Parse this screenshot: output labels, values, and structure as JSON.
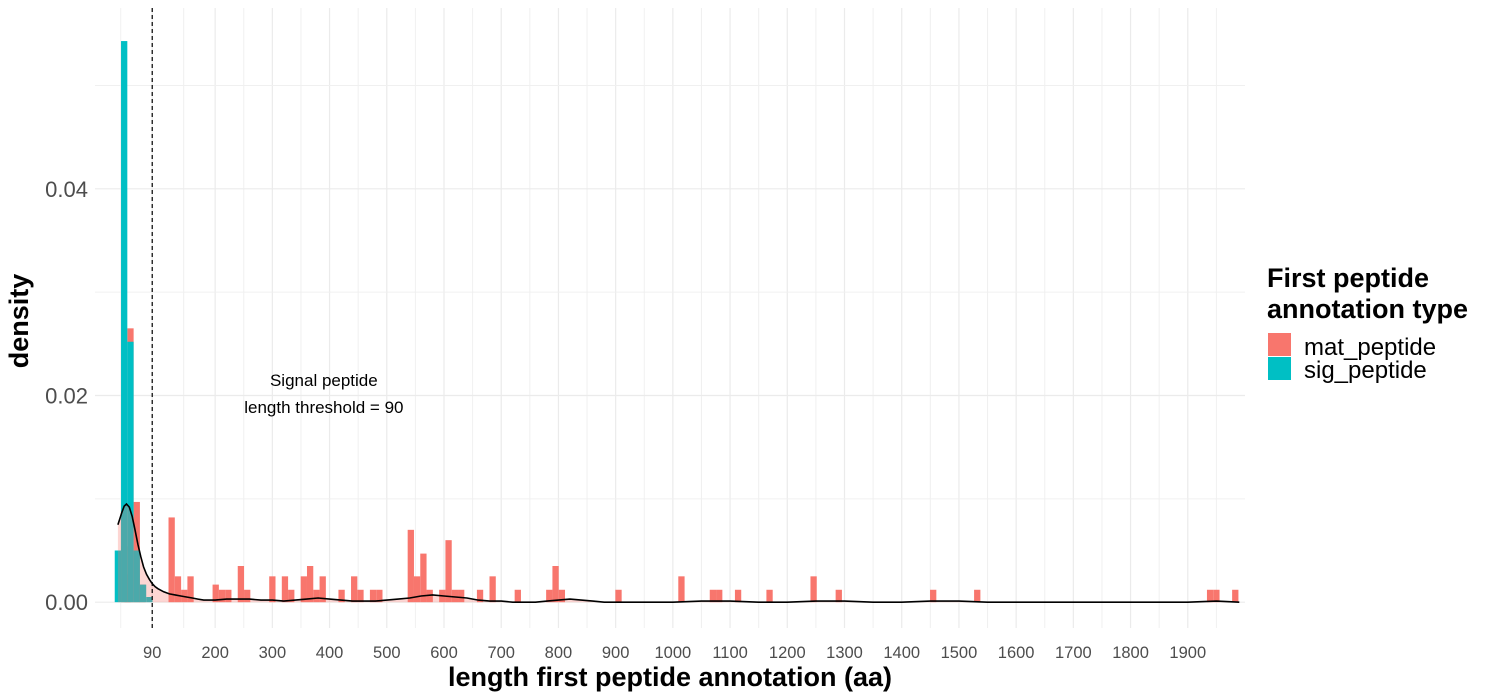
{
  "chart_data": {
    "type": "histogram",
    "xlabel": "length first peptide annotation (aa)",
    "ylabel": "density",
    "xlim": [
      -10,
      2000
    ],
    "ylim": [
      -0.0025,
      0.0575
    ],
    "x_ticks": [
      90,
      200,
      300,
      400,
      500,
      600,
      700,
      800,
      900,
      1000,
      1100,
      1200,
      1300,
      1400,
      1500,
      1600,
      1700,
      1800,
      1900
    ],
    "y_ticks": [
      0.0,
      0.02,
      0.04
    ],
    "y_tick_labels": [
      "0.00",
      "0.02",
      "0.04"
    ],
    "grid": true,
    "bin_width": 11,
    "threshold": {
      "x": 90,
      "style": "dashed"
    },
    "annotation": {
      "line1": "Signal peptide",
      "line2": "length threshold = 90",
      "x": 390,
      "y": 0.0209
    },
    "legend": {
      "title_line1": "First peptide",
      "title_line2": "annotation type",
      "position": "right",
      "items": [
        {
          "label": "mat_peptide",
          "color": "#F8766D"
        },
        {
          "label": "sig_peptide",
          "color": "#00BFC4"
        }
      ]
    },
    "series": [
      {
        "name": "mat_peptide",
        "color": "#F8766D",
        "bars": [
          [
            41,
            0.0054
          ],
          [
            47,
            0.0027
          ],
          [
            52,
            0.0265
          ],
          [
            63,
            0.0097
          ],
          [
            73,
            0.0017
          ],
          [
            124,
            0.0082
          ],
          [
            135,
            0.0025
          ],
          [
            146,
            0.0012
          ],
          [
            157,
            0.0025
          ],
          [
            201,
            0.0017
          ],
          [
            212,
            0.0012
          ],
          [
            223,
            0.0012
          ],
          [
            245,
            0.0035
          ],
          [
            256,
            0.0012
          ],
          [
            300,
            0.0025
          ],
          [
            322,
            0.0025
          ],
          [
            333,
            0.0012
          ],
          [
            355,
            0.0025
          ],
          [
            366,
            0.0035
          ],
          [
            377,
            0.0012
          ],
          [
            388,
            0.0025
          ],
          [
            421,
            0.0012
          ],
          [
            443,
            0.0025
          ],
          [
            454,
            0.0012
          ],
          [
            476,
            0.0012
          ],
          [
            487,
            0.0012
          ],
          [
            542,
            0.007
          ],
          [
            553,
            0.0025
          ],
          [
            564,
            0.0047
          ],
          [
            575,
            0.0012
          ],
          [
            597,
            0.0012
          ],
          [
            608,
            0.006
          ],
          [
            619,
            0.0012
          ],
          [
            630,
            0.0012
          ],
          [
            663,
            0.0012
          ],
          [
            685,
            0.0025
          ],
          [
            729,
            0.0012
          ],
          [
            784,
            0.0012
          ],
          [
            795,
            0.0035
          ],
          [
            806,
            0.0012
          ],
          [
            905,
            0.0012
          ],
          [
            1015,
            0.0025
          ],
          [
            1070,
            0.0012
          ],
          [
            1081,
            0.0012
          ],
          [
            1114,
            0.0012
          ],
          [
            1169,
            0.0012
          ],
          [
            1246,
            0.0025
          ],
          [
            1290,
            0.0012
          ],
          [
            1455,
            0.0012
          ],
          [
            1532,
            0.0012
          ],
          [
            1939,
            0.0012
          ],
          [
            1950,
            0.0012
          ],
          [
            1983,
            0.0012
          ]
        ]
      },
      {
        "name": "sig_peptide",
        "color": "#00BFC4",
        "bars": [
          [
            30,
            0.005
          ],
          [
            41,
            0.0543
          ],
          [
            52,
            0.0252
          ],
          [
            63,
            0.005
          ],
          [
            74,
            0.0017
          ],
          [
            85,
            0.0005
          ]
        ]
      }
    ],
    "density_curve": {
      "x": [
        30,
        33,
        37,
        41,
        45,
        50,
        55,
        60,
        65,
        70,
        75,
        80,
        85,
        90,
        95,
        100,
        110,
        120,
        130,
        140,
        150,
        160,
        170,
        180,
        200,
        220,
        240,
        260,
        280,
        300,
        320,
        340,
        360,
        380,
        400,
        420,
        440,
        460,
        480,
        500,
        520,
        540,
        560,
        580,
        600,
        620,
        640,
        660,
        680,
        700,
        720,
        740,
        760,
        780,
        800,
        820,
        840,
        860,
        880,
        900,
        950,
        1000,
        1050,
        1100,
        1150,
        1200,
        1250,
        1300,
        1350,
        1400,
        1450,
        1500,
        1550,
        1600,
        1650,
        1700,
        1750,
        1800,
        1850,
        1900,
        1950,
        1990
      ],
      "y": [
        0.0075,
        0.008,
        0.0087,
        0.0093,
        0.0095,
        0.0092,
        0.0083,
        0.007,
        0.0056,
        0.0044,
        0.0034,
        0.0027,
        0.0022,
        0.0018,
        0.0015,
        0.0013,
        0.001,
        0.0008,
        0.0007,
        0.0006,
        0.0005,
        0.0004,
        0.0003,
        0.0002,
        0.0002,
        0.0003,
        0.0003,
        0.0003,
        0.0002,
        0.0002,
        0.0001,
        0.0002,
        0.0003,
        0.0004,
        0.0003,
        0.0002,
        0.0001,
        0.0001,
        0.0001,
        0.0002,
        0.0003,
        0.0004,
        0.0006,
        0.0007,
        0.0006,
        0.0005,
        0.0004,
        0.0002,
        0.0001,
        0.0001,
        0.0,
        0.0,
        0.0,
        0.0001,
        0.0002,
        0.0003,
        0.0002,
        0.0001,
        0.0,
        0.0,
        0.0,
        0.0,
        0.0001,
        0.0001,
        0.0,
        0.0,
        0.0001,
        0.0001,
        0.0,
        0.0,
        0.0001,
        0.0001,
        0.0,
        0.0,
        0.0,
        0.0,
        0.0,
        0.0,
        0.0,
        0.0,
        0.0001,
        0.0
      ]
    }
  }
}
